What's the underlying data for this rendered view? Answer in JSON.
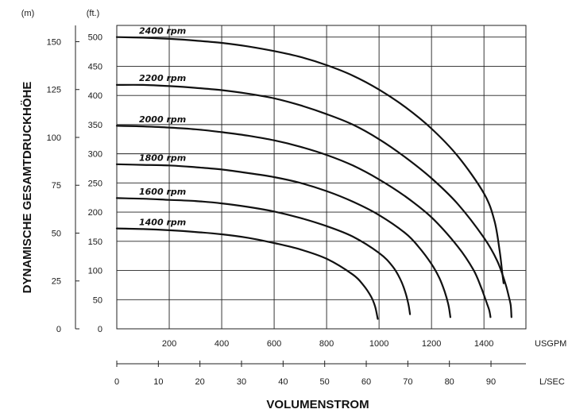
{
  "chart_data": {
    "type": "line",
    "title": "",
    "ylabel": "DYNAMISCHE GESAMTDRUCKHÖHE",
    "xlabel": "VOLUMENSTROM",
    "y_ft": {
      "unit": "(ft.)",
      "range": [
        0,
        520
      ],
      "ticks": [
        "0",
        "50",
        "100",
        "150",
        "200",
        "250",
        "300",
        "350",
        "400",
        "450",
        "500"
      ]
    },
    "y_m": {
      "unit": "(m)",
      "range": [
        0,
        158.5
      ],
      "ticks": [
        "0",
        "25",
        "50",
        "75",
        "100",
        "125",
        "150"
      ]
    },
    "x_usgpm": {
      "unit": "USGPM",
      "range": [
        0,
        1560
      ],
      "ticks": [
        "200",
        "400",
        "600",
        "800",
        "1000",
        "1200",
        "1400"
      ]
    },
    "x_lsec": {
      "unit": "L/SEC",
      "range": [
        0,
        98.4
      ],
      "ticks": [
        "0",
        "10",
        "20",
        "30",
        "40",
        "50",
        "60",
        "70",
        "80",
        "90"
      ]
    },
    "grid": true,
    "series": [
      {
        "name": "2400 rpm",
        "x": [
          0,
          100,
          200,
          300,
          400,
          500,
          600,
          700,
          800,
          900,
          1000,
          1100,
          1200,
          1300,
          1400,
          1440,
          1460,
          1470,
          1475
        ],
        "y": [
          500,
          499,
          497,
          494,
          490,
          484,
          476,
          466,
          452,
          434,
          410,
          380,
          343,
          296,
          232,
          185,
          133,
          95,
          78
        ]
      },
      {
        "name": "2200 rpm",
        "x": [
          0,
          100,
          200,
          300,
          400,
          500,
          600,
          700,
          800,
          900,
          1000,
          1100,
          1200,
          1300,
          1400,
          1450,
          1480,
          1495,
          1502,
          1505
        ],
        "y": [
          418,
          418,
          416,
          413,
          409,
          403,
          395,
          383,
          368,
          350,
          325,
          294,
          258,
          214,
          156,
          117,
          80,
          55,
          40,
          20
        ]
      },
      {
        "name": "2000 rpm",
        "x": [
          0,
          100,
          200,
          300,
          400,
          500,
          600,
          700,
          800,
          900,
          1000,
          1100,
          1200,
          1300,
          1360,
          1390,
          1410,
          1420,
          1425
        ],
        "y": [
          348,
          347,
          345,
          342,
          337,
          331,
          323,
          312,
          298,
          280,
          256,
          227,
          191,
          141,
          101,
          70,
          45,
          32,
          20
        ]
      },
      {
        "name": "1800 rpm",
        "x": [
          0,
          100,
          200,
          300,
          400,
          500,
          600,
          700,
          800,
          900,
          1000,
          1100,
          1150,
          1200,
          1230,
          1250,
          1265,
          1272
        ],
        "y": [
          282,
          281,
          280,
          277,
          273,
          267,
          260,
          250,
          236,
          218,
          195,
          164,
          141,
          111,
          87,
          64,
          40,
          20
        ]
      },
      {
        "name": "1600 rpm",
        "x": [
          0,
          100,
          200,
          300,
          400,
          500,
          600,
          700,
          800,
          900,
          1000,
          1050,
          1080,
          1100,
          1112,
          1118
        ],
        "y": [
          224,
          223,
          221,
          219,
          215,
          209,
          201,
          190,
          176,
          158,
          130,
          108,
          86,
          63,
          42,
          25
        ]
      },
      {
        "name": "1400 rpm",
        "x": [
          0,
          100,
          200,
          300,
          400,
          500,
          600,
          700,
          800,
          900,
          940,
          970,
          985,
          995
        ],
        "y": [
          172,
          171,
          169,
          166,
          162,
          156,
          147,
          136,
          120,
          93,
          75,
          55,
          38,
          17
        ]
      }
    ]
  }
}
